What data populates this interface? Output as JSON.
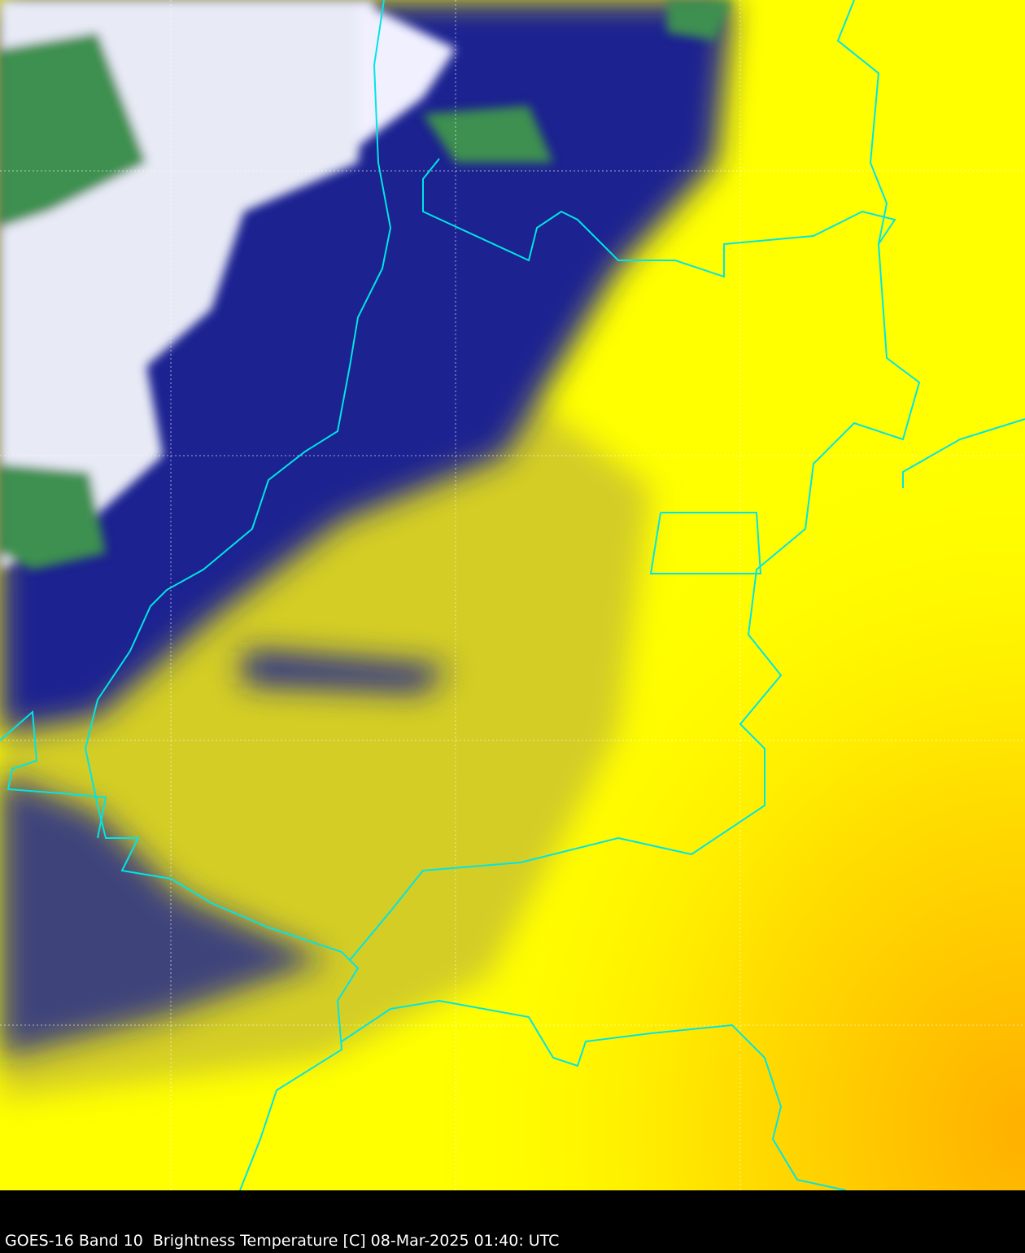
{
  "caption": "GOES-16 Band 10  Brightness Temperature [C] 08-Mar-2025 01:40: UTC",
  "colors": {
    "warm": "#ffff00",
    "hot": "#ffaa00",
    "cold_blue": "#101a80",
    "coldest_white": "#ffffff",
    "green": "#2e8b3e",
    "border": "#00e5e5",
    "background": "#000000"
  }
}
